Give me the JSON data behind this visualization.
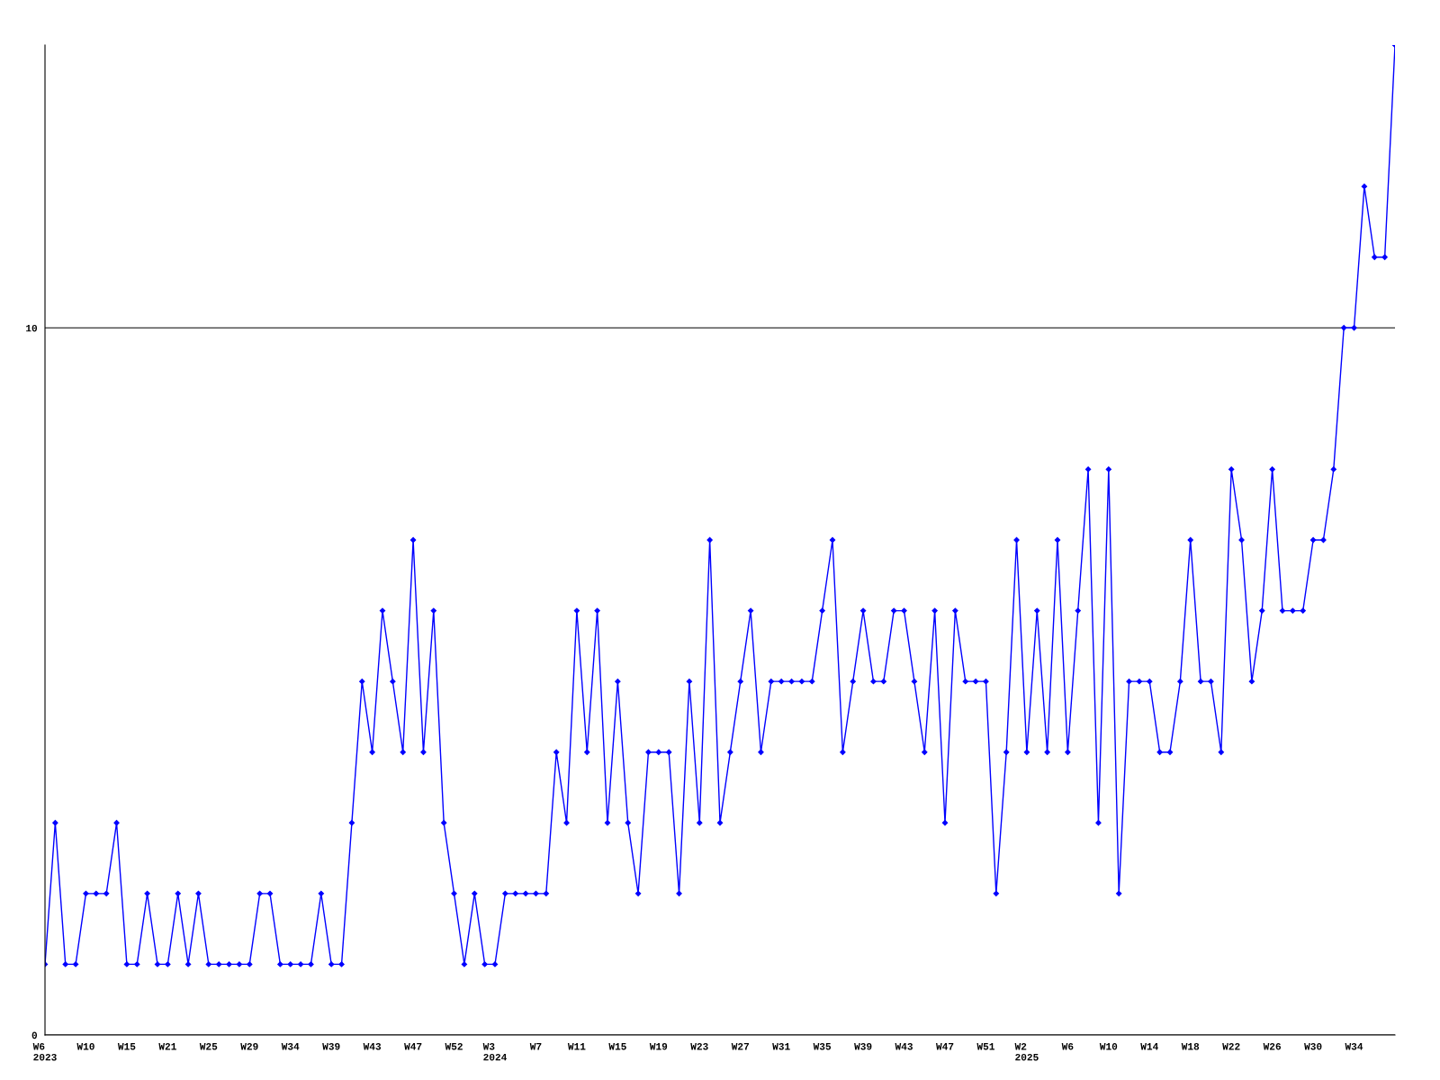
{
  "chart_data": {
    "type": "line",
    "categories": [
      "W6\n2023",
      null,
      null,
      null,
      "W10",
      null,
      null,
      null,
      "W15",
      null,
      null,
      null,
      "W21",
      null,
      null,
      null,
      "W25",
      null,
      null,
      null,
      "W29",
      null,
      null,
      null,
      "W34",
      null,
      null,
      null,
      "W39",
      null,
      null,
      null,
      "W43",
      null,
      null,
      null,
      "W47",
      null,
      null,
      null,
      "W52",
      null,
      null,
      null,
      "W3\n2024",
      null,
      null,
      null,
      "W7",
      null,
      null,
      null,
      "W11",
      null,
      null,
      null,
      "W15",
      null,
      null,
      null,
      "W19",
      null,
      null,
      null,
      "W23",
      null,
      null,
      null,
      "W27",
      null,
      null,
      null,
      "W31",
      null,
      null,
      null,
      "W35",
      null,
      null,
      null,
      "W39",
      null,
      null,
      null,
      "W43",
      null,
      null,
      null,
      "W47",
      null,
      null,
      null,
      "W51",
      null,
      null,
      null,
      "W2\n2025",
      null,
      null,
      null,
      "W6",
      null,
      null,
      null,
      "W10",
      null,
      null,
      null,
      "W14",
      null,
      null,
      null,
      "W18",
      null,
      null,
      null,
      "W22",
      null,
      null,
      null,
      "W26",
      null,
      null,
      null,
      "W30",
      null,
      null,
      null,
      "W34",
      null,
      null,
      null,
      null
    ],
    "series": [
      {
        "color": "#0000ff",
        "values": [
          1,
          3,
          1,
          1,
          2,
          2,
          2,
          3,
          1,
          1,
          2,
          1,
          1,
          2,
          1,
          2,
          1,
          1,
          1,
          1,
          1,
          2,
          2,
          1,
          1,
          1,
          1,
          2,
          1,
          1,
          3,
          5,
          4,
          6,
          5,
          4,
          7,
          4,
          6,
          3,
          2,
          1,
          2,
          1,
          1,
          2,
          2,
          2,
          2,
          2,
          4,
          3,
          6,
          4,
          6,
          3,
          5,
          3,
          2,
          4,
          4,
          4,
          2,
          5,
          3,
          7,
          3,
          4,
          5,
          6,
          4,
          5,
          5,
          5,
          5,
          5,
          6,
          7,
          4,
          5,
          6,
          5,
          5,
          6,
          6,
          5,
          4,
          6,
          3,
          6,
          5,
          5,
          5,
          2,
          4,
          7,
          4,
          6,
          4,
          7,
          4,
          6,
          8,
          3,
          8,
          2,
          5,
          5,
          5,
          4,
          4,
          5,
          7,
          5,
          5,
          4,
          8,
          7,
          5,
          6,
          8,
          6,
          6,
          6,
          7,
          7,
          8,
          10,
          10,
          12,
          11,
          11,
          14
        ]
      }
    ],
    "ylim": [
      0,
      14
    ],
    "yticks": [
      0,
      10
    ],
    "grid": "y",
    "marker": "diamond",
    "line_style": "solid"
  }
}
